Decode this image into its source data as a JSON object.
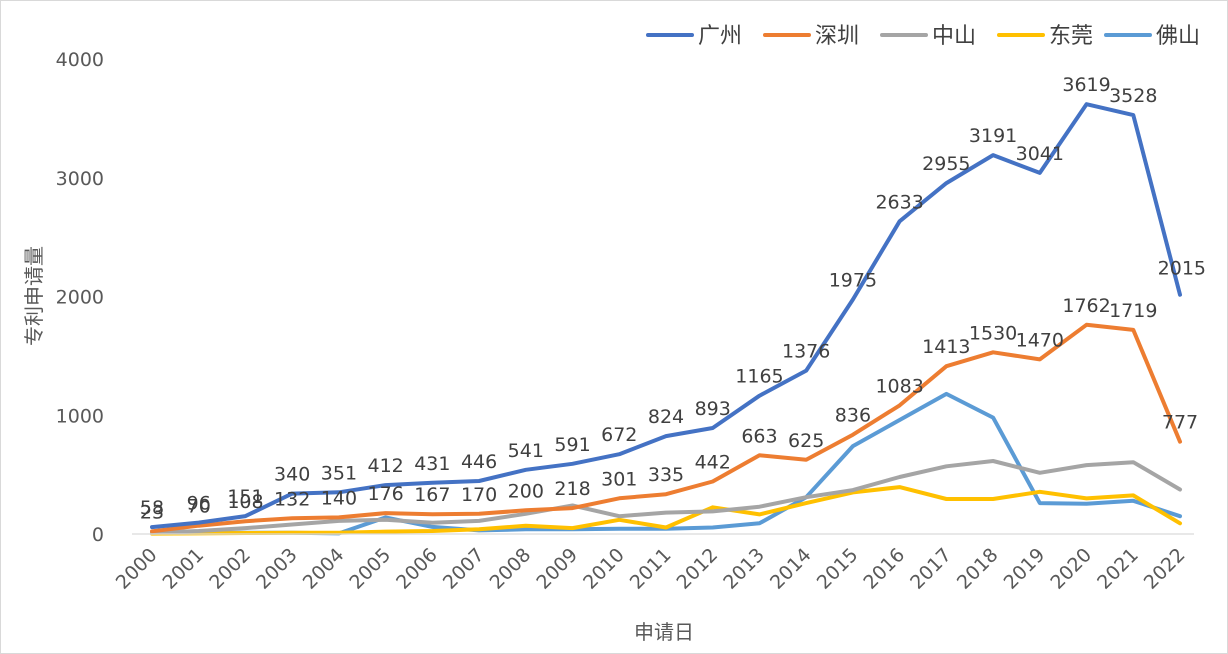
{
  "chart_data": {
    "type": "line",
    "title": "",
    "xlabel": "申请日",
    "ylabel": "专利申请量",
    "ylim": [
      0,
      4000
    ],
    "yticks": [
      "0",
      "1000",
      "2000",
      "3000",
      "4000"
    ],
    "grid": false,
    "legend": "top-right",
    "categories": [
      "2000",
      "2001",
      "2002",
      "2003",
      "2004",
      "2005",
      "2006",
      "2007",
      "2008",
      "2009",
      "2010",
      "2011",
      "2012",
      "2013",
      "2014",
      "2015",
      "2016",
      "2017",
      "2018",
      "2019",
      "2020",
      "2021",
      "2022"
    ],
    "series": [
      {
        "name": "广州",
        "color": "#4472C4",
        "values": [
          58,
          96,
          151,
          340,
          351,
          412,
          431,
          446,
          541,
          591,
          672,
          824,
          893,
          1165,
          1376,
          1975,
          2633,
          2955,
          3191,
          3041,
          3619,
          3528,
          2015
        ],
        "labels": [
          "58",
          "96",
          "151",
          "340",
          "351",
          "412",
          "431",
          "446",
          "541",
          "591",
          "672",
          "824",
          "893",
          "1165",
          "1376",
          "1975",
          "2633",
          "2955",
          "3191",
          "3041",
          "3619",
          "3528",
          "2015"
        ]
      },
      {
        "name": "深圳",
        "color": "#ED7D31",
        "values": [
          23,
          70,
          108,
          132,
          140,
          176,
          167,
          170,
          200,
          218,
          301,
          335,
          442,
          663,
          625,
          836,
          1083,
          1413,
          1530,
          1470,
          1762,
          1719,
          777
        ],
        "labels": [
          "23",
          "70",
          "108",
          "132",
          "140",
          "176",
          "167",
          "170",
          "200",
          "218",
          "301",
          "335",
          "442",
          "663",
          "625",
          "836",
          "1083",
          "1413",
          "1530",
          "1470",
          "1762",
          "1719",
          "777"
        ]
      },
      {
        "name": "中山",
        "color": "#A5A5A5",
        "values": [
          10,
          25,
          50,
          80,
          110,
          120,
          95,
          110,
          170,
          240,
          150,
          180,
          190,
          230,
          310,
          370,
          480,
          570,
          615,
          515,
          580,
          605,
          375
        ]
      },
      {
        "name": "东莞",
        "color": "#FFC000",
        "values": [
          3,
          5,
          8,
          10,
          10,
          20,
          25,
          40,
          70,
          50,
          120,
          55,
          225,
          165,
          260,
          350,
          395,
          295,
          295,
          355,
          300,
          325,
          90
        ]
      },
      {
        "name": "佛山",
        "color": "#5B9BD5",
        "values": [
          5,
          8,
          10,
          10,
          5,
          140,
          60,
          30,
          40,
          40,
          45,
          45,
          55,
          90,
          310,
          740,
          960,
          1180,
          980,
          260,
          255,
          280,
          150
        ]
      }
    ]
  }
}
